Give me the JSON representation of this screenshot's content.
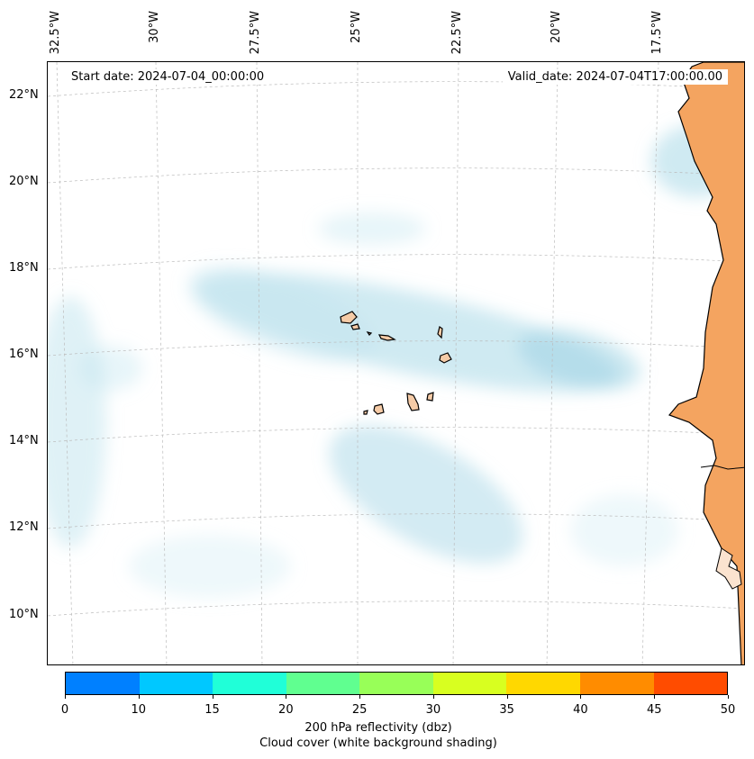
{
  "map": {
    "start_date_text": "Start date: 2024-07-04_00:00:00",
    "valid_date_text": "Valid_date: 2024-07-04T17:00:00.00",
    "longitude_labels": [
      "32.5°W",
      "30°W",
      "27.5°W",
      "25°W",
      "22.5°W",
      "20°W",
      "17.5°W"
    ],
    "latitude_labels": [
      "22°N",
      "20°N",
      "18°N",
      "16°N",
      "14°N",
      "12°N",
      "10°N"
    ],
    "land_color": "#f4a460",
    "island_color": "#f5cba7",
    "cloud_color": "#a8d8e8"
  },
  "colorbar": {
    "ticks": [
      "0",
      "10",
      "15",
      "20",
      "25",
      "30",
      "35",
      "40",
      "45",
      "50"
    ],
    "colors": [
      "#0080ff",
      "#00c8ff",
      "#20ffd8",
      "#60ff90",
      "#98ff58",
      "#d8ff20",
      "#ffd800",
      "#ff8c00",
      "#ff4c00"
    ],
    "label_line1": "200 hPa reflectivity (dbz)",
    "label_line2": "Cloud cover (white background shading)"
  }
}
